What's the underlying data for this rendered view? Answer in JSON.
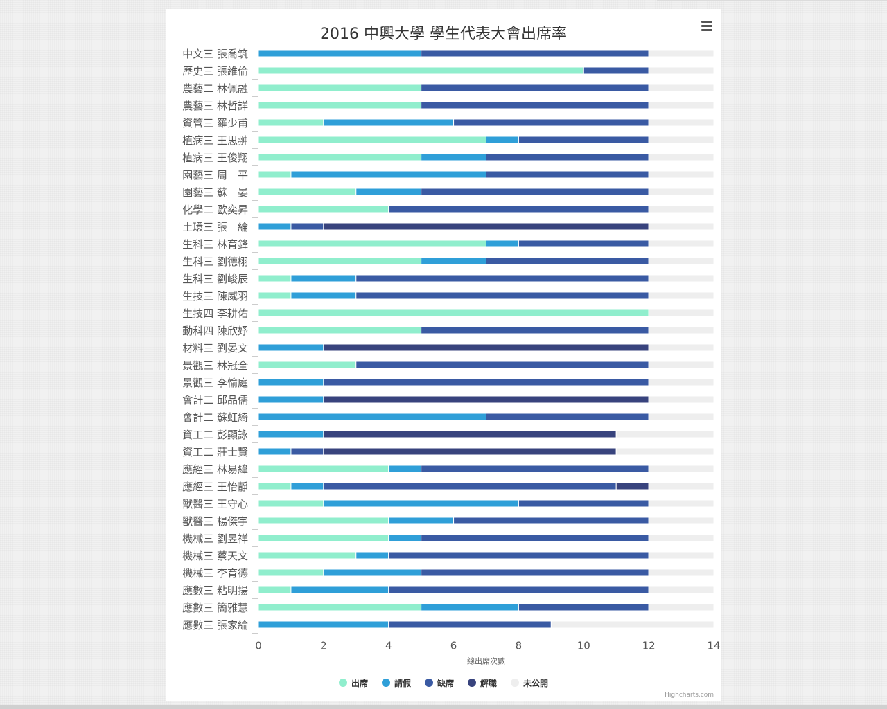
{
  "chart_data": {
    "type": "bar",
    "orientation": "horizontal",
    "stacked": true,
    "title": "2016 中興大學 學生代表大會出席率",
    "xlabel": "總出席次數",
    "xlim": [
      0,
      14
    ],
    "xticks": [
      0,
      2,
      4,
      6,
      8,
      10,
      12,
      14
    ],
    "categories": [
      "中文三 張喬筑",
      "歷史三 張維倫",
      "農藝二 林佩融",
      "農藝三 林哲詳",
      "資管三 羅少甫",
      "植病三 王思翀",
      "植病三 王俊翔",
      "園藝三 周　平",
      "園藝三 蘇　晏",
      "化學二 歐奕昇",
      "土環三 張　綸",
      "生科三 林育鋒",
      "生科三 劉德栩",
      "生科三 劉峻辰",
      "生技三 陳威羽",
      "生技四 李耕佑",
      "動科四 陳欣妤",
      "材料三 劉晏文",
      "景觀三 林冠全",
      "景觀三 李愉庭",
      "會計二 邱品儒",
      "會計二 蘇虹綺",
      "資工二 彭顯詠",
      "資工二 莊士賢",
      "應經三 林易緯",
      "應經三 王怡靜",
      "獸醫三 王守心",
      "獸醫三 楊傑宇",
      "機械三 劉昱祥",
      "機械三 蔡天文",
      "機械三 李育德",
      "應數三 粘明揚",
      "應數三 簡雅慧",
      "應數三 張家綸"
    ],
    "series": [
      {
        "name": "出席",
        "color": "#90eecd",
        "values": [
          0,
          10,
          5,
          5,
          2,
          7,
          5,
          1,
          3,
          4,
          0,
          7,
          5,
          1,
          1,
          12,
          5,
          0,
          3,
          0,
          0,
          0,
          0,
          0,
          4,
          1,
          2,
          4,
          4,
          3,
          2,
          1,
          5,
          0
        ]
      },
      {
        "name": "請假",
        "color": "#2f9fd8",
        "values": [
          5,
          0,
          0,
          0,
          4,
          1,
          2,
          6,
          2,
          0,
          1,
          1,
          2,
          2,
          2,
          0,
          0,
          2,
          0,
          2,
          2,
          7,
          2,
          1,
          1,
          1,
          6,
          2,
          1,
          1,
          3,
          3,
          3,
          4
        ]
      },
      {
        "name": "缺席",
        "color": "#3a5aa3",
        "values": [
          7,
          2,
          7,
          7,
          6,
          4,
          5,
          5,
          7,
          8,
          1,
          4,
          5,
          9,
          9,
          0,
          7,
          0,
          9,
          10,
          0,
          5,
          0,
          1,
          7,
          9,
          4,
          6,
          7,
          8,
          7,
          8,
          4,
          5
        ]
      },
      {
        "name": "解職",
        "color": "#38437d",
        "values": [
          0,
          0,
          0,
          0,
          0,
          0,
          0,
          0,
          0,
          0,
          10,
          0,
          0,
          0,
          0,
          0,
          0,
          10,
          0,
          0,
          10,
          0,
          9,
          9,
          0,
          1,
          0,
          0,
          0,
          0,
          0,
          0,
          0,
          0
        ]
      },
      {
        "name": "未公開",
        "color": "#eeeeee",
        "values": [
          2,
          2,
          2,
          2,
          2,
          2,
          2,
          2,
          2,
          2,
          2,
          2,
          2,
          2,
          2,
          2,
          2,
          2,
          2,
          2,
          2,
          2,
          3,
          3,
          2,
          2,
          2,
          2,
          2,
          2,
          2,
          2,
          2,
          5
        ]
      }
    ],
    "grid": false,
    "legend_position": "bottom-center",
    "credits": "Highcharts.com"
  }
}
